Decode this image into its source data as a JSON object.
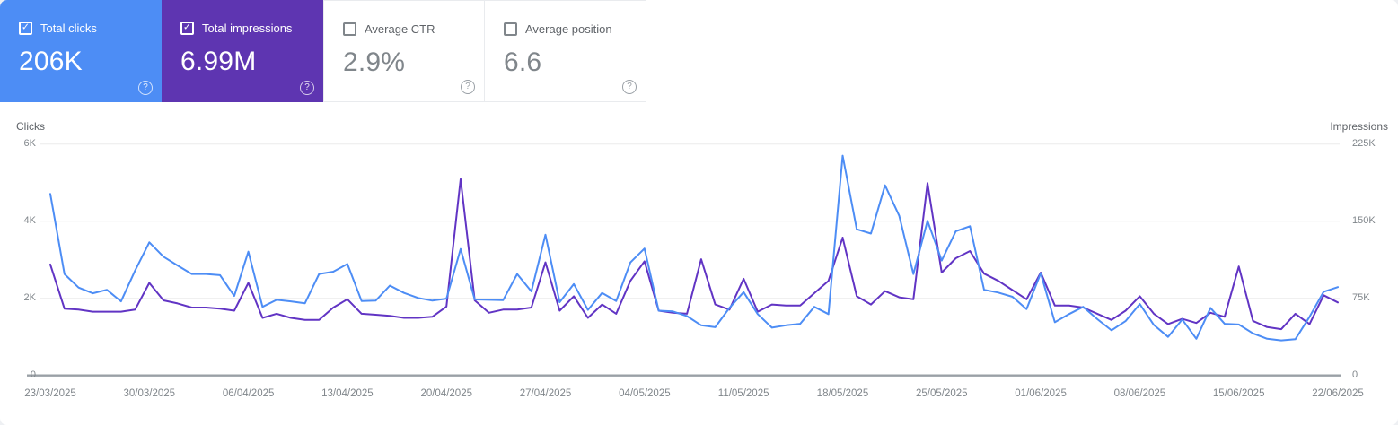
{
  "cards": [
    {
      "id": "total-clicks",
      "label": "Total clicks",
      "value": "206K",
      "checked": true,
      "bg": "#4d8df5"
    },
    {
      "id": "total-impressions",
      "label": "Total impressions",
      "value": "6.99M",
      "checked": true,
      "bg": "#5e35b1"
    },
    {
      "id": "average-ctr",
      "label": "Average CTR",
      "value": "2.9%",
      "checked": false,
      "bg": "#ffffff"
    },
    {
      "id": "average-position",
      "label": "Average position",
      "value": "6.6",
      "checked": false,
      "bg": "#ffffff"
    }
  ],
  "icons": {
    "help": "?",
    "check": "✓"
  },
  "chart_data": {
    "type": "line",
    "date_range": {
      "start": "23/03/2025",
      "end": "22/06/2025",
      "interval": "daily"
    },
    "x_tick_labels": [
      "23/03/2025",
      "30/03/2025",
      "06/04/2025",
      "13/04/2025",
      "20/04/2025",
      "27/04/2025",
      "04/05/2025",
      "11/05/2025",
      "18/05/2025",
      "25/05/2025",
      "01/06/2025",
      "08/06/2025",
      "15/06/2025",
      "22/06/2025"
    ],
    "left_axis": {
      "title": "Clicks",
      "ticks": [
        "6K",
        "4K",
        "2K",
        "0"
      ],
      "max": 6000
    },
    "right_axis": {
      "title": "Impressions",
      "ticks": [
        "225K",
        "150K",
        "75K",
        "0"
      ],
      "max": 225000
    },
    "grid": "horizontal",
    "colors": {
      "grid": "#ececec",
      "baseline": "#9aa0a6"
    },
    "series": [
      {
        "name": "Clicks",
        "axis": "left",
        "color": "#4d8df5",
        "values": [
          4710,
          2630,
          2280,
          2130,
          2220,
          1920,
          2720,
          3450,
          3080,
          2850,
          2630,
          2630,
          2600,
          2060,
          3210,
          1780,
          1960,
          1920,
          1870,
          2630,
          2690,
          2890,
          1930,
          1940,
          2330,
          2140,
          2010,
          1940,
          1990,
          3280,
          1970,
          1960,
          1950,
          2630,
          2180,
          3650,
          1900,
          2370,
          1700,
          2140,
          1930,
          2930,
          3290,
          1680,
          1660,
          1540,
          1300,
          1250,
          1750,
          2160,
          1590,
          1240,
          1300,
          1340,
          1780,
          1590,
          5700,
          3790,
          3680,
          4930,
          4140,
          2630,
          4010,
          2980,
          3740,
          3870,
          2220,
          2150,
          2040,
          1720,
          2650,
          1380,
          1590,
          1780,
          1460,
          1170,
          1410,
          1850,
          1310,
          1000,
          1450,
          950,
          1750,
          1340,
          1320,
          1090,
          950,
          910,
          940,
          1520,
          2170,
          2290
        ]
      },
      {
        "name": "Impressions",
        "axis": "right",
        "color": "#6134c4",
        "values": [
          108000,
          65000,
          64000,
          62000,
          62000,
          62000,
          64000,
          90000,
          73000,
          70000,
          66000,
          66000,
          65000,
          63000,
          90000,
          56000,
          60000,
          56000,
          54000,
          54000,
          66000,
          74000,
          60000,
          59000,
          58000,
          56000,
          56000,
          57000,
          67000,
          191000,
          73000,
          61000,
          64000,
          64000,
          66000,
          110000,
          63000,
          77000,
          56000,
          69000,
          60000,
          92000,
          111000,
          63000,
          61000,
          60000,
          113000,
          69000,
          64000,
          94000,
          62000,
          69000,
          68000,
          68000,
          80000,
          92000,
          134000,
          77000,
          69000,
          82000,
          76000,
          74000,
          187000,
          100000,
          114000,
          121000,
          99000,
          92000,
          83000,
          74000,
          100000,
          68000,
          68000,
          66000,
          60000,
          54000,
          63000,
          77000,
          60000,
          50000,
          55000,
          51000,
          61000,
          57000,
          106000,
          53000,
          47000,
          45000,
          60000,
          50000,
          78000,
          71000
        ]
      }
    ]
  }
}
